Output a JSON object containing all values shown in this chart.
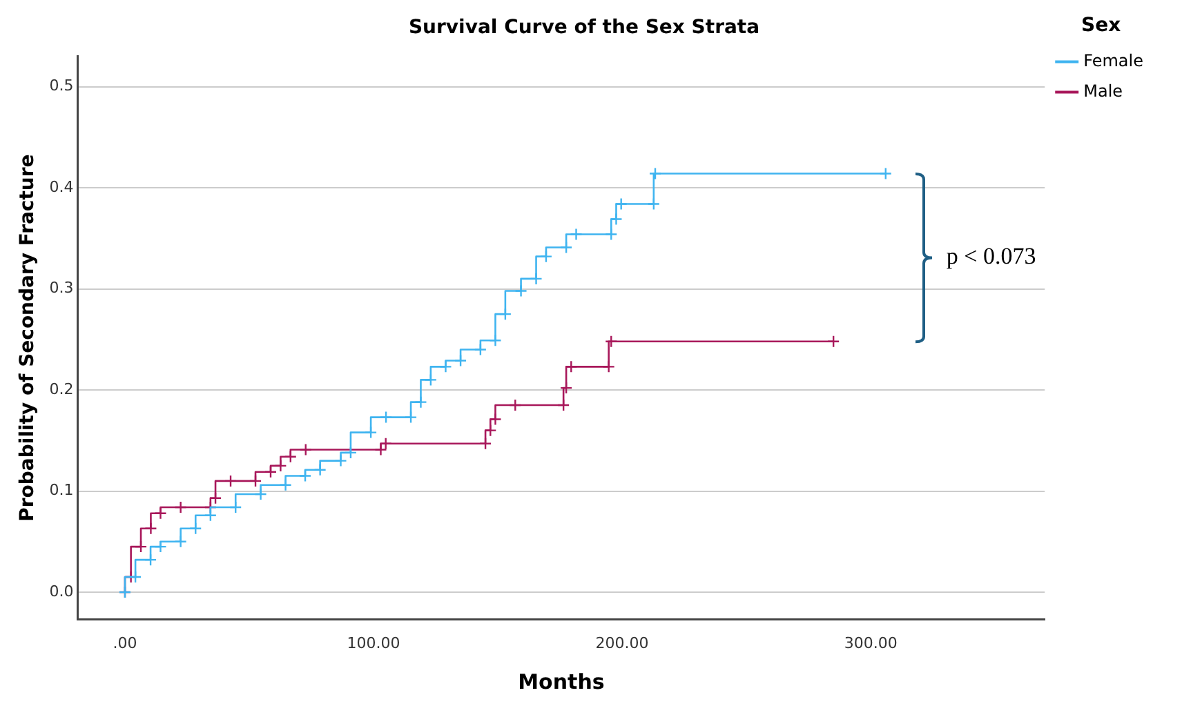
{
  "chart_data": {
    "type": "step",
    "title": "Survival Curve of the Sex Strata",
    "xlabel": "Months",
    "ylabel": "Probability of Secondary Fracture",
    "legend_title": "Sex",
    "xlim": [
      -19,
      370
    ],
    "xticks": [
      {
        "value": 0,
        "label": ".00"
      },
      {
        "value": 100,
        "label": "100.00"
      },
      {
        "value": 200,
        "label": "200.00"
      },
      {
        "value": 300,
        "label": "300.00"
      }
    ],
    "ylim": [
      -0.027,
      0.53
    ],
    "yticks": [
      {
        "value": 0,
        "label": "0.0"
      },
      0.1,
      0.2,
      0.3,
      0.4,
      0.5
    ],
    "grid": "y",
    "legend": "top right",
    "marker": "cross",
    "annotations": [
      "p < 0.073"
    ],
    "series": [
      {
        "name": "Female",
        "color": "#3fb4f0",
        "x": [
          0,
          4.2,
          10.3,
          14.3,
          22.4,
          28.4,
          34.4,
          44.5,
          54.6,
          64.6,
          72.5,
          78.5,
          86.8,
          90.8,
          98.9,
          105,
          115,
          119,
          123,
          129,
          135,
          143,
          149,
          153,
          159.3,
          165.4,
          169.4,
          177.5,
          181.5,
          195.6,
          197.6,
          199.6,
          212.7,
          213.3,
          306
        ],
        "values": [
          0,
          0.015,
          0.032,
          0.045,
          0.05,
          0.063,
          0.076,
          0.084,
          0.097,
          0.106,
          0.115,
          0.121,
          0.13,
          0.138,
          0.158,
          0.173,
          0.173,
          0.188,
          0.21,
          0.223,
          0.229,
          0.24,
          0.249,
          0.275,
          0.298,
          0.31,
          0.332,
          0.341,
          0.354,
          0.354,
          0.369,
          0.384,
          0.384,
          0.414,
          0.414
        ]
      },
      {
        "name": "Male",
        "color": "#a8175a",
        "x": [
          0,
          2.4,
          6.4,
          10.4,
          14.3,
          22.4,
          34.4,
          36.4,
          42.5,
          52.5,
          58.6,
          62.6,
          66.6,
          72.7,
          102.9,
          104.9,
          145,
          147,
          149,
          157,
          176.4,
          177.5,
          179.5,
          194.6,
          195.6,
          285
        ],
        "values": [
          0,
          0.015,
          0.045,
          0.063,
          0.078,
          0.084,
          0.084,
          0.093,
          0.11,
          0.11,
          0.119,
          0.125,
          0.134,
          0.141,
          0.141,
          0.147,
          0.147,
          0.16,
          0.171,
          0.185,
          0.185,
          0.202,
          0.223,
          0.223,
          0.248,
          0.248
        ]
      }
    ]
  }
}
